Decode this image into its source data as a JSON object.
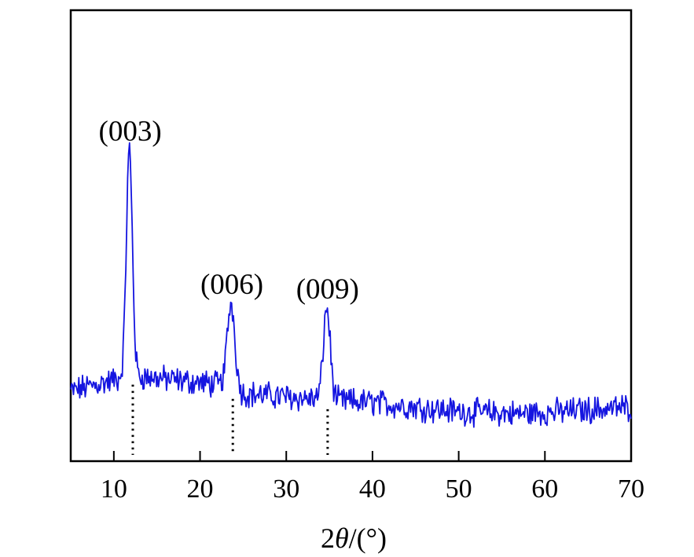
{
  "chart_data": {
    "type": "line",
    "xlabel_prefix": "2",
    "xlabel_symbol": "θ",
    "xlabel_suffix": "/(°)",
    "ylabel": "",
    "xlim": [
      5,
      70
    ],
    "ylim": [
      0,
      100
    ],
    "x_ticks": [
      10,
      20,
      30,
      40,
      50,
      60,
      70
    ],
    "y_ticks_shown": false,
    "grid": false,
    "legend": "none",
    "series": [
      {
        "color": "#1515e0",
        "baseline": [
          [
            5,
            15.5
          ],
          [
            12,
            19
          ],
          [
            22,
            17
          ],
          [
            25,
            15
          ],
          [
            35,
            13.5
          ],
          [
            40,
            13
          ],
          [
            50,
            11
          ],
          [
            57,
            10.5
          ],
          [
            62,
            11
          ],
          [
            70,
            12
          ]
        ]
      }
    ],
    "peaks": [
      {
        "label": "(003)",
        "x": 11.8,
        "y": 69,
        "width": 0.35
      },
      {
        "label": "(006)",
        "x": 23.6,
        "y": 35,
        "width": 0.45
      },
      {
        "label": "(009)",
        "x": 34.7,
        "y": 34,
        "width": 0.4
      }
    ],
    "reference_lines": [
      12.2,
      23.8,
      34.8
    ],
    "reference_line_style": "dotted"
  }
}
